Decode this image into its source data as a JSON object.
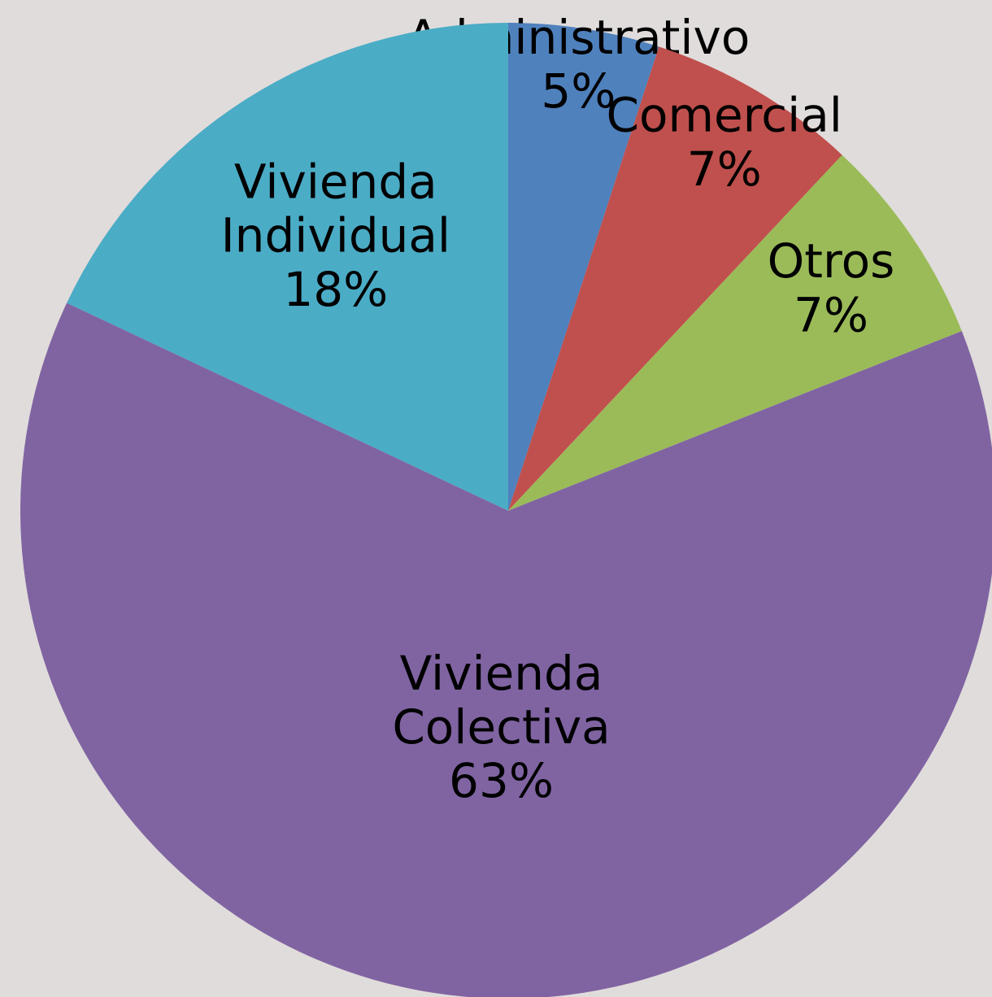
{
  "chart_data": {
    "type": "pie",
    "categories": [
      "Administrativo",
      "Comercial",
      "Otros",
      "Vivienda Colectiva",
      "Vivienda Individual"
    ],
    "values": [
      5,
      7,
      7,
      63,
      18
    ],
    "value_labels": [
      "5%",
      "7%",
      "7%",
      "63%",
      "18%"
    ],
    "colors": [
      "#4f81bd",
      "#c0504d",
      "#9bbb59",
      "#8064a2",
      "#4bacc6"
    ]
  }
}
